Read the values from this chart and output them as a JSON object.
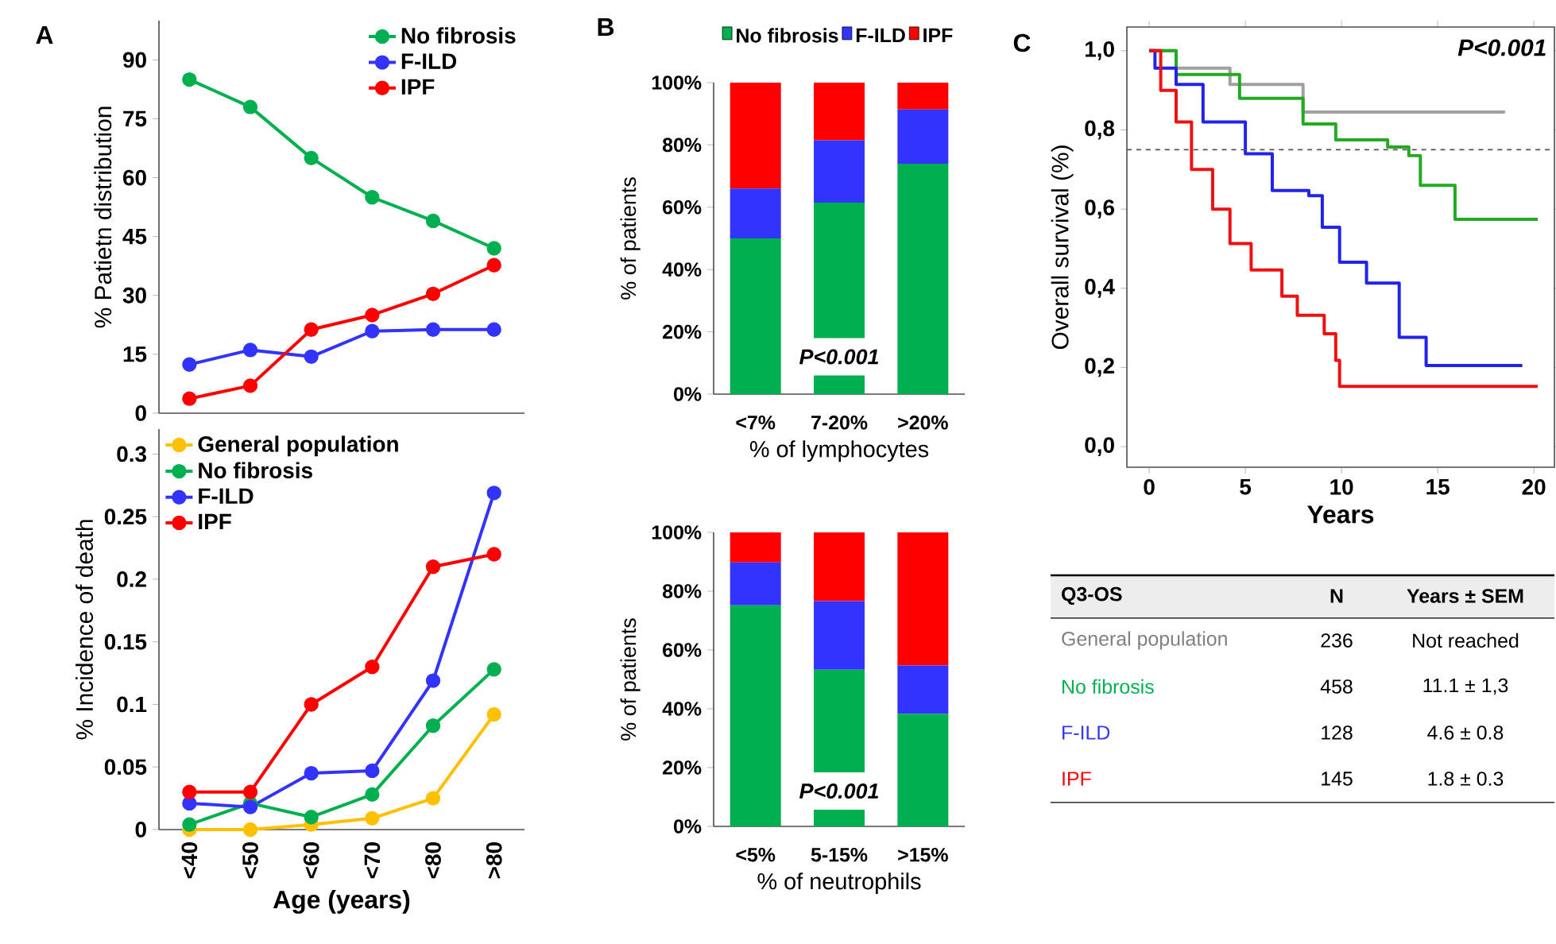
{
  "chart_data": [
    {
      "type": "line",
      "title": "A",
      "ylabel": "% Patietn distribution",
      "categories": [
        null,
        null,
        null,
        null,
        null,
        null
      ],
      "ylim": [
        0,
        100
      ],
      "yticks": [
        0,
        15,
        30,
        45,
        60,
        75,
        90
      ],
      "legend": "top right",
      "marker": "circle",
      "series": [
        {
          "name": "No fibrosis",
          "color": "#00b050",
          "values": [
            85,
            78,
            65,
            55,
            49,
            42
          ]
        },
        {
          "name": "F-ILD",
          "color": "#3333ff",
          "values": [
            12.4,
            16.1,
            14.4,
            20.9,
            21.3,
            21.3
          ]
        },
        {
          "name": "IPF",
          "color": "#ff0000",
          "values": [
            3.7,
            7,
            21.3,
            25,
            30.4,
            37.7
          ]
        }
      ]
    },
    {
      "type": "line",
      "xlabel": "Age (years)",
      "ylabel": "% Incidence of death",
      "categories": [
        "<40",
        "<50",
        "<60",
        "<70",
        "<80",
        ">80"
      ],
      "ylim": [
        0,
        0.32
      ],
      "yticks": [
        0,
        0.05,
        0.1,
        0.15,
        0.2,
        0.25,
        0.3
      ],
      "legend": "top left",
      "marker": "circle",
      "series": [
        {
          "name": "General population",
          "color": "#ffc000",
          "values": [
            0,
            0,
            0.004,
            0.009,
            0.025,
            0.092
          ]
        },
        {
          "name": "No fibrosis",
          "color": "#00b050",
          "values": [
            0.004,
            0.021,
            0.01,
            0.028,
            0.083,
            0.128
          ]
        },
        {
          "name": "F-ILD",
          "color": "#3333ff",
          "values": [
            0.021,
            0.018,
            0.045,
            0.047,
            0.119,
            0.269
          ]
        },
        {
          "name": "IPF",
          "color": "#ff0000",
          "values": [
            0.03,
            0.03,
            0.1,
            0.13,
            0.21,
            0.22
          ]
        }
      ]
    },
    {
      "type": "bar",
      "title": "B",
      "stacked": true,
      "xlabel": "% of lymphocytes",
      "ylabel": "% of patients",
      "categories": [
        "<7%",
        "7-20%",
        ">20%"
      ],
      "ylim": [
        0,
        100
      ],
      "yticks": [
        {
          "value": 0,
          "label": "0%"
        },
        {
          "value": 20,
          "label": "20%"
        },
        {
          "value": 40,
          "label": "40%"
        },
        {
          "value": 60,
          "label": "60%"
        },
        {
          "value": 80,
          "label": "80%"
        },
        {
          "value": 100,
          "label": "100%"
        }
      ],
      "legend": "top",
      "annotations": [
        "P<0.001"
      ],
      "series": [
        {
          "name": "No fibrosis",
          "color": "#00b050",
          "values": [
            50,
            61.5,
            74
          ]
        },
        {
          "name": "F-ILD",
          "color": "#3333ff",
          "values": [
            16,
            20,
            17.4
          ]
        },
        {
          "name": "IPF",
          "color": "#ff0000",
          "values": [
            34,
            18.5,
            8.6
          ]
        }
      ]
    },
    {
      "type": "bar",
      "stacked": true,
      "xlabel": "% of neutrophils",
      "ylabel": "% of patients",
      "categories": [
        "<5%",
        "5-15%",
        ">15%"
      ],
      "ylim": [
        0,
        100
      ],
      "yticks": [
        {
          "value": 0,
          "label": "0%"
        },
        {
          "value": 20,
          "label": "20%"
        },
        {
          "value": 40,
          "label": "40%"
        },
        {
          "value": 60,
          "label": "60%"
        },
        {
          "value": 80,
          "label": "80%"
        },
        {
          "value": 100,
          "label": "100%"
        }
      ],
      "annotations": [
        "P<0.001"
      ],
      "series": [
        {
          "color": "#00b050",
          "values": [
            75.2,
            53.3,
            38.3
          ]
        },
        {
          "color": "#3333ff",
          "values": [
            14.6,
            23.3,
            16.4
          ]
        },
        {
          "color": "#ff0000",
          "values": [
            10.2,
            23.4,
            45.3
          ]
        }
      ]
    },
    {
      "type": "step",
      "title": "C",
      "xlabel": "Years",
      "ylabel": "Overall survival (%)",
      "xlim": [
        -1.16,
        21.07
      ],
      "xticks": [
        0,
        5,
        10,
        15,
        20
      ],
      "ylim": [
        -0.052,
        1.06
      ],
      "yticks": [
        {
          "value": 0,
          "label": "0,0"
        },
        {
          "value": 0.2,
          "label": "0,2"
        },
        {
          "value": 0.4,
          "label": "0,4"
        },
        {
          "value": 0.6,
          "label": "0,6"
        },
        {
          "value": 0.8,
          "label": "0,8"
        },
        {
          "value": 1,
          "label": "1,0"
        }
      ],
      "annotations": [
        "P<0.001"
      ],
      "ref_lines": [
        {
          "axis": "y",
          "value": 0.75,
          "line_style": "dashed",
          "color": "#555555"
        }
      ],
      "series": [
        {
          "color": "#a0a0a0",
          "x": [
            0,
            1.4,
            4.2,
            8,
            18.5
          ],
          "values": [
            1,
            0.956,
            0.915,
            0.845,
            0.845
          ]
        },
        {
          "color": "#22aa22",
          "x": [
            0,
            1.4,
            4.7,
            8,
            9.7,
            12.4,
            13.5,
            14.1,
            15.9,
            20.2
          ],
          "values": [
            1,
            0.94,
            0.88,
            0.815,
            0.775,
            0.757,
            0.735,
            0.66,
            0.574,
            0.574
          ]
        },
        {
          "color": "#2222ee",
          "x": [
            0,
            0.3,
            1.4,
            2.8,
            5,
            6.4,
            8.3,
            9,
            9.9,
            11.3,
            13,
            14.4,
            19.4
          ],
          "values": [
            1,
            0.956,
            0.915,
            0.82,
            0.74,
            0.647,
            0.634,
            0.554,
            0.466,
            0.413,
            0.276,
            0.205,
            0.205
          ]
        },
        {
          "color": "#ee1111",
          "x": [
            0,
            0.6,
            1.4,
            2.2,
            3.3,
            4.2,
            5.3,
            6.9,
            7.7,
            9.1,
            9.7,
            9.9,
            20.2
          ],
          "values": [
            1,
            0.9,
            0.82,
            0.7,
            0.6,
            0.513,
            0.446,
            0.38,
            0.332,
            0.285,
            0.218,
            0.152,
            0.152
          ]
        }
      ]
    },
    {
      "type": "other",
      "categories": [
        "General population",
        "No fibrosis",
        "F-ILD",
        "IPF"
      ],
      "colors": [
        "#808080",
        "#00b050",
        "#3333ff",
        "#ff0000"
      ],
      "annotations": [
        "Q3-OS",
        "N",
        "Years ± SEM",
        "236",
        "Not reached",
        "458",
        "11.1 ± 1,3",
        "128",
        "4.6 ± 0.8",
        "145",
        "1.8 ± 0.3"
      ]
    }
  ]
}
